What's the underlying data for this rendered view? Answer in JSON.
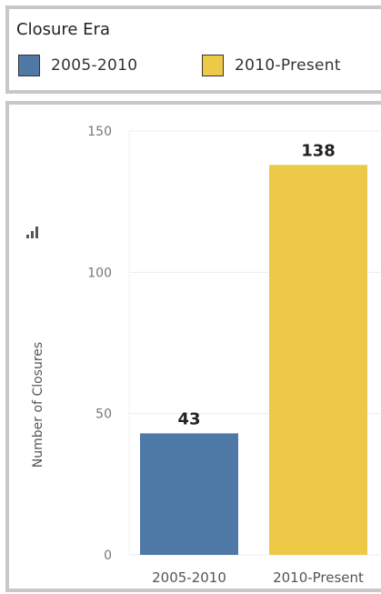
{
  "legend": {
    "title": "Closure Era",
    "items": [
      {
        "label": "2005-2010",
        "color": "#4e79a7"
      },
      {
        "label": "2010-Present",
        "color": "#edc948"
      }
    ]
  },
  "chart_data": {
    "type": "bar",
    "categories": [
      "2005-2010",
      "2010-Present"
    ],
    "values": [
      43,
      138
    ],
    "colors": [
      "#4e79a7",
      "#edc948"
    ],
    "data_labels": [
      "43",
      "138"
    ],
    "ylabel": "Number of Closures",
    "xlabel": "",
    "ylim": [
      0,
      150
    ],
    "yticks": [
      0,
      50,
      100,
      150
    ],
    "ytick_labels": [
      "0",
      "50",
      "100",
      "150"
    ],
    "grid": true,
    "legend_placement": "top"
  },
  "icons": {
    "sort": "bar-sort-icon"
  }
}
